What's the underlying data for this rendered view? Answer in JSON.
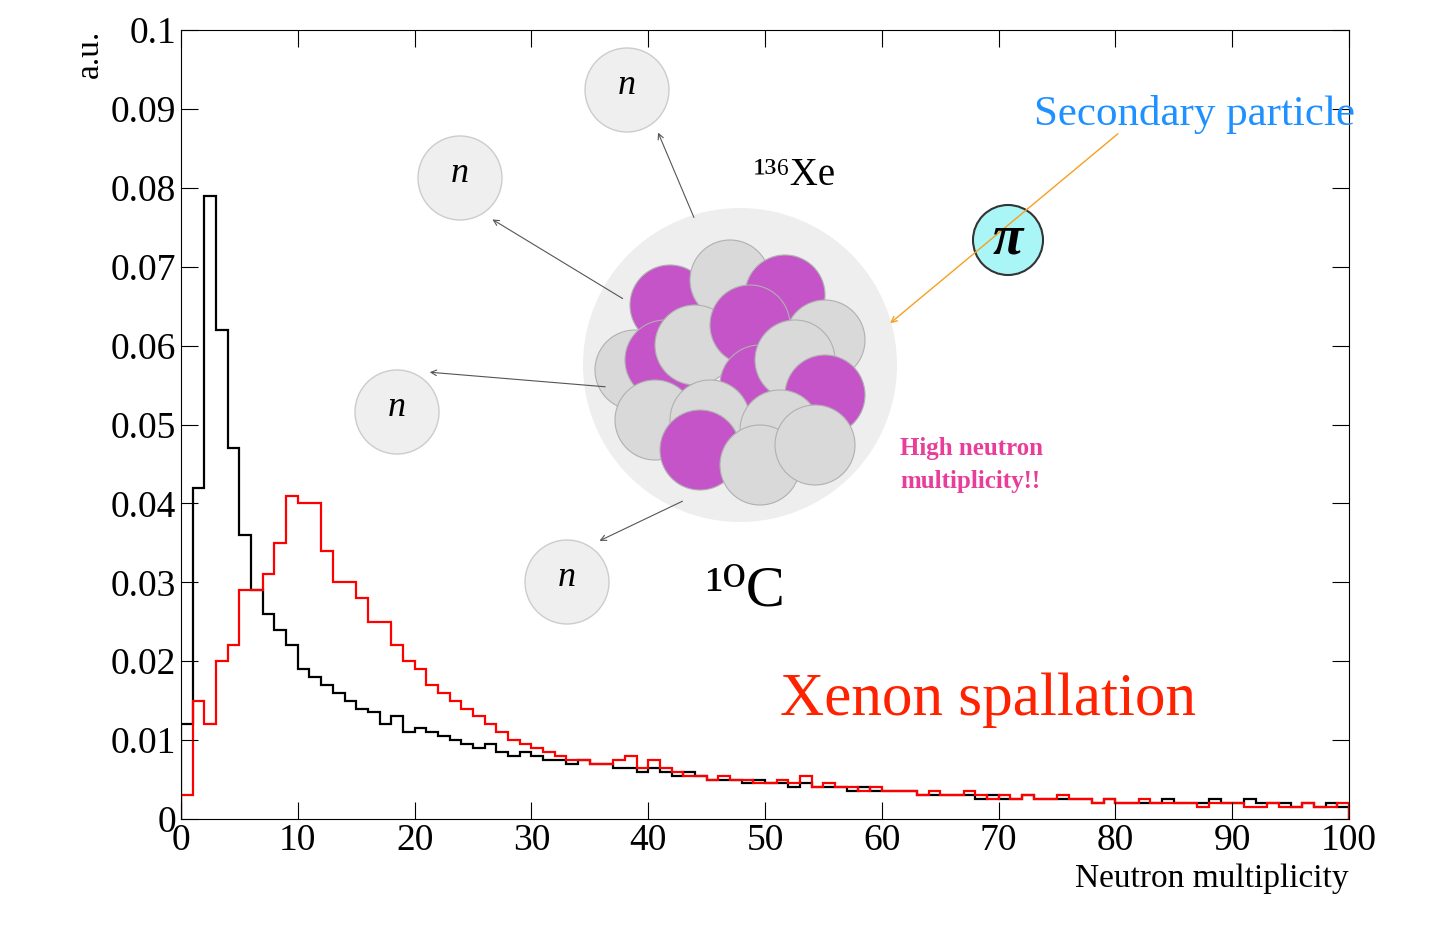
{
  "chart_data": {
    "type": "histogram",
    "xlabel": "Neutron multiplicity",
    "ylabel": "a.u.",
    "bins": [
      0,
      1,
      2,
      3,
      4,
      5,
      6,
      7,
      8,
      9,
      10,
      11,
      12,
      13,
      14,
      15,
      16,
      17,
      18,
      19,
      20,
      21,
      22,
      23,
      24,
      25,
      26,
      27,
      28,
      29,
      30,
      31,
      32,
      33,
      34,
      35,
      36,
      37,
      38,
      39,
      40,
      41,
      42,
      43,
      44,
      45,
      46,
      47,
      48,
      49,
      50,
      51,
      52,
      53,
      54,
      55,
      56,
      57,
      58,
      59,
      60,
      61,
      62,
      63,
      64,
      65,
      66,
      67,
      68,
      69,
      70,
      71,
      72,
      73,
      74,
      75,
      76,
      77,
      78,
      79,
      80,
      81,
      82,
      83,
      84,
      85,
      86,
      87,
      88,
      89,
      90,
      91,
      92,
      93,
      94,
      95,
      96,
      97,
      98,
      99,
      100
    ],
    "series": [
      {
        "color": "#000000",
        "values": [
          0.012,
          0.042,
          0.079,
          0.062,
          0.047,
          0.036,
          0.029,
          0.026,
          0.024,
          0.022,
          0.019,
          0.018,
          0.017,
          0.016,
          0.015,
          0.014,
          0.0135,
          0.012,
          0.013,
          0.011,
          0.0115,
          0.011,
          0.0105,
          0.01,
          0.0095,
          0.009,
          0.0095,
          0.0085,
          0.008,
          0.0085,
          0.008,
          0.0075,
          0.0075,
          0.007,
          0.0075,
          0.007,
          0.007,
          0.0065,
          0.0065,
          0.006,
          0.0065,
          0.006,
          0.0055,
          0.006,
          0.0055,
          0.005,
          0.005,
          0.005,
          0.0045,
          0.005,
          0.0045,
          0.0045,
          0.004,
          0.0045,
          0.004,
          0.004,
          0.004,
          0.0035,
          0.004,
          0.0035,
          0.0035,
          0.0035,
          0.0035,
          0.003,
          0.003,
          0.003,
          0.003,
          0.003,
          0.0025,
          0.003,
          0.0025,
          0.0025,
          0.003,
          0.0025,
          0.0025,
          0.0025,
          0.0025,
          0.0025,
          0.002,
          0.0025,
          0.002,
          0.002,
          0.002,
          0.002,
          0.0025,
          0.002,
          0.002,
          0.002,
          0.0025,
          0.002,
          0.002,
          0.0025,
          0.002,
          0.002,
          0.002,
          0.0015,
          0.002,
          0.0015,
          0.002,
          0.0015
        ]
      },
      {
        "color": "#ff0000",
        "values": [
          0.003,
          0.015,
          0.012,
          0.02,
          0.022,
          0.029,
          0.029,
          0.031,
          0.035,
          0.041,
          0.04,
          0.04,
          0.034,
          0.03,
          0.03,
          0.028,
          0.025,
          0.025,
          0.022,
          0.02,
          0.019,
          0.017,
          0.016,
          0.015,
          0.014,
          0.013,
          0.012,
          0.011,
          0.01,
          0.0095,
          0.009,
          0.0085,
          0.008,
          0.0075,
          0.0075,
          0.007,
          0.007,
          0.0075,
          0.008,
          0.0065,
          0.0075,
          0.0065,
          0.006,
          0.0055,
          0.0055,
          0.005,
          0.0055,
          0.005,
          0.005,
          0.0045,
          0.0045,
          0.005,
          0.0045,
          0.0055,
          0.004,
          0.0045,
          0.004,
          0.004,
          0.0035,
          0.004,
          0.0035,
          0.0035,
          0.0035,
          0.003,
          0.0035,
          0.003,
          0.003,
          0.0035,
          0.003,
          0.0025,
          0.003,
          0.0025,
          0.003,
          0.0025,
          0.0025,
          0.003,
          0.0025,
          0.0025,
          0.002,
          0.0025,
          0.002,
          0.002,
          0.0025,
          0.002,
          0.002,
          0.002,
          0.002,
          0.0015,
          0.002,
          0.002,
          0.002,
          0.0015,
          0.0015,
          0.002,
          0.0015,
          0.0015,
          0.002,
          0.0015,
          0.0015,
          0.002
        ]
      }
    ],
    "xlim": [
      0,
      100
    ],
    "ylim": [
      0,
      0.1
    ],
    "xticks": [
      0,
      10,
      20,
      30,
      40,
      50,
      60,
      70,
      80,
      90,
      100
    ],
    "yticks": [
      0,
      0.01,
      0.02,
      0.03,
      0.04,
      0.05,
      0.06,
      0.07,
      0.08,
      0.09,
      0.1
    ],
    "annotations": [
      {
        "text": "¹⁰C",
        "color": "#000000"
      },
      {
        "text": "Xenon spallation",
        "color": "#ff2200"
      },
      {
        "text": "Secondary particle",
        "color": "#1e90ff"
      },
      {
        "text": "High neutron\nmultiplicity!!",
        "color": "#e83e9a"
      },
      {
        "text": "¹³⁶Xe",
        "color": "#000000"
      },
      {
        "text": "π",
        "color": "#000000"
      },
      {
        "text": "n",
        "color": "#000000"
      },
      {
        "text": "n",
        "color": "#000000"
      },
      {
        "text": "n",
        "color": "#000000"
      },
      {
        "text": "n",
        "color": "#000000"
      }
    ]
  }
}
